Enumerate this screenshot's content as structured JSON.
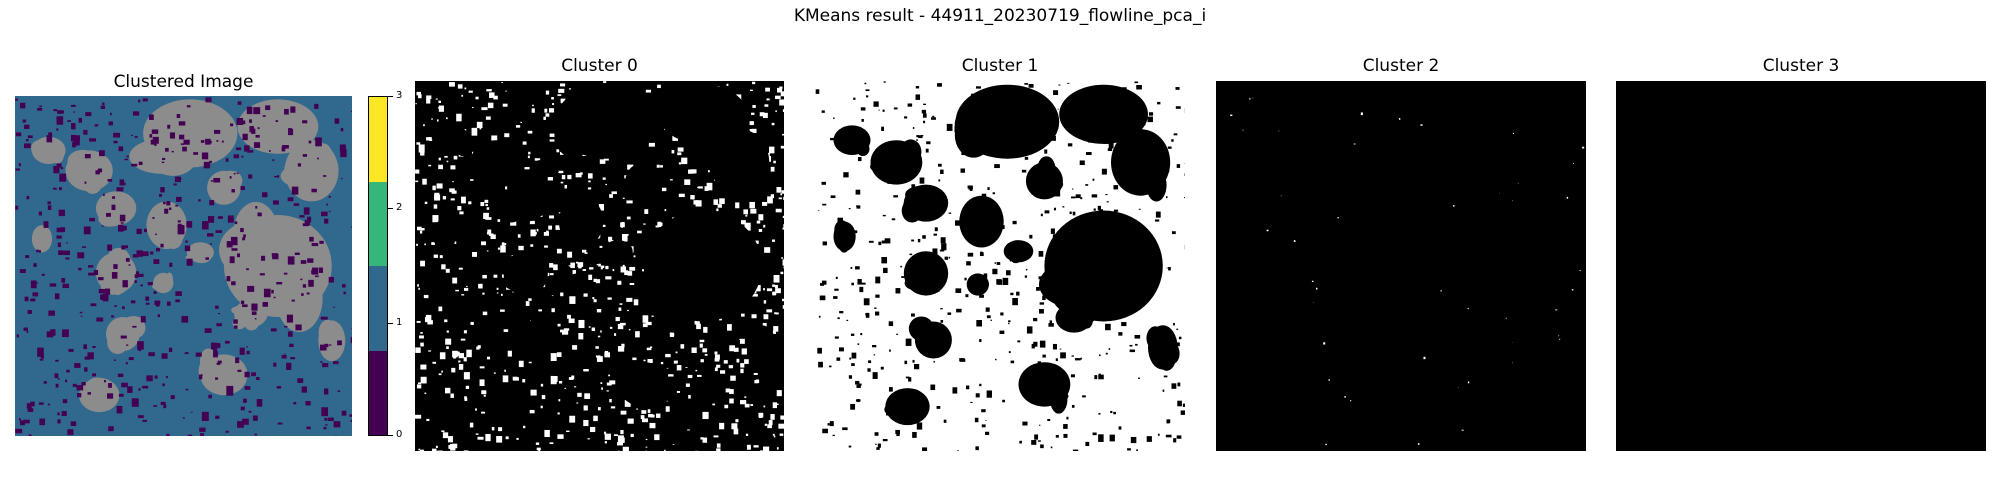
{
  "figure": {
    "suptitle": "KMeans result - 44911_20230719_flowline_pca_i"
  },
  "chart_data": [
    {
      "type": "heatmap",
      "title": "Clustered Image",
      "colormap": "viridis",
      "clusters": [
        0,
        1,
        2,
        3
      ],
      "cluster_colors": [
        "#440154",
        "#31688e",
        "#35b779",
        "#fde725"
      ],
      "overlay_color": "#8c8c8c",
      "colorbar": {
        "ticks": [
          "0",
          "1",
          "2",
          "3"
        ],
        "range": [
          0,
          3
        ]
      },
      "axes": "off"
    },
    {
      "type": "heatmap",
      "title": "Cluster 0",
      "colors": [
        "#000000",
        "#ffffff"
      ],
      "axes": "off"
    },
    {
      "type": "heatmap",
      "title": "Cluster 1",
      "colors": [
        "#000000",
        "#ffffff"
      ],
      "axes": "off"
    },
    {
      "type": "heatmap",
      "title": "Cluster 2",
      "colors": [
        "#000000",
        "#ffffff"
      ],
      "axes": "off"
    },
    {
      "type": "heatmap",
      "title": "Cluster 3",
      "colors": [
        "#000000",
        "#ffffff"
      ],
      "axes": "off"
    }
  ]
}
